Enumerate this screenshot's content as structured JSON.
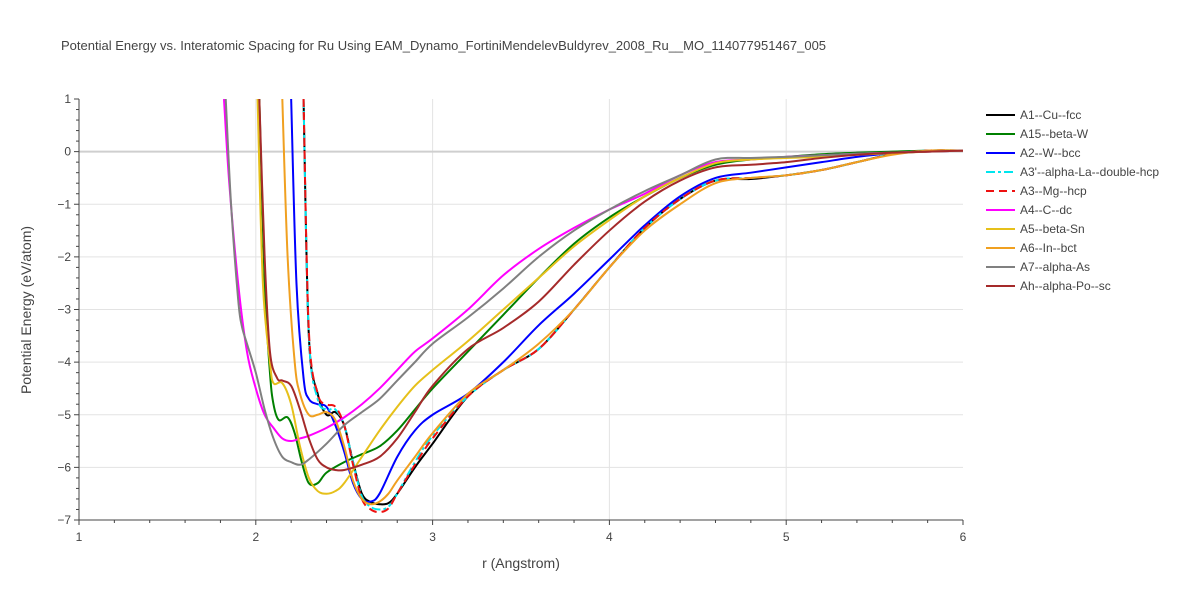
{
  "chart_data": {
    "type": "line",
    "title": "Potential Energy vs. Interatomic Spacing for Ru Using EAM_Dynamo_FortiniMendelevBuldyrev_2008_Ru__MO_114077951467_005",
    "xlabel": "r (Angstrom)",
    "ylabel": "Potential Energy (eV/atom)",
    "xlim": [
      1,
      6
    ],
    "ylim": [
      -7,
      1
    ],
    "xticks": [
      "1",
      "2",
      "3",
      "4",
      "5",
      "6"
    ],
    "yticks": [
      "1",
      "0",
      "−1",
      "−2",
      "−3",
      "−4",
      "−5",
      "−6",
      "−7"
    ],
    "grid": true,
    "legend_position": "right",
    "series": [
      {
        "name": "A1--Cu--fcc",
        "color": "#000000",
        "dash": "solid",
        "x": [
          2.27,
          2.3,
          2.35,
          2.4,
          2.45,
          2.5,
          2.55,
          2.6,
          2.65,
          2.7,
          2.75,
          2.8,
          2.9,
          3.0,
          3.2,
          3.4,
          3.6,
          3.8,
          4.0,
          4.2,
          4.4,
          4.6,
          4.8,
          5.0,
          5.2,
          5.4,
          5.6,
          5.8,
          6.0
        ],
        "y": [
          1.0,
          -3.5,
          -4.6,
          -5.0,
          -4.95,
          -5.2,
          -5.9,
          -6.5,
          -6.66,
          -6.7,
          -6.68,
          -6.5,
          -6.0,
          -5.55,
          -4.65,
          -4.15,
          -3.75,
          -3.0,
          -2.2,
          -1.45,
          -0.9,
          -0.55,
          -0.52,
          -0.45,
          -0.35,
          -0.2,
          -0.05,
          0.02,
          0.02
        ]
      },
      {
        "name": "A15--beta-W",
        "color": "#008000",
        "dash": "solid",
        "x": [
          2.02,
          2.05,
          2.08,
          2.1,
          2.13,
          2.18,
          2.22,
          2.26,
          2.3,
          2.35,
          2.4,
          2.5,
          2.6,
          2.7,
          2.8,
          2.9,
          3.0,
          3.2,
          3.4,
          3.6,
          3.8,
          4.0,
          4.2,
          4.4,
          4.6,
          4.8,
          5.0,
          5.2,
          5.4,
          5.6,
          5.8,
          6.0
        ],
        "y": [
          1.0,
          -2.5,
          -4.2,
          -4.8,
          -5.1,
          -5.05,
          -5.35,
          -5.9,
          -6.3,
          -6.3,
          -6.1,
          -5.9,
          -5.75,
          -5.6,
          -5.3,
          -4.9,
          -4.5,
          -3.8,
          -3.1,
          -2.4,
          -1.75,
          -1.25,
          -0.85,
          -0.5,
          -0.25,
          -0.15,
          -0.1,
          -0.05,
          -0.02,
          0.0,
          0.02,
          0.02
        ]
      },
      {
        "name": "A2--W--bcc",
        "color": "#0000ff",
        "dash": "solid",
        "x": [
          2.2,
          2.23,
          2.27,
          2.3,
          2.35,
          2.4,
          2.45,
          2.5,
          2.55,
          2.6,
          2.65,
          2.7,
          2.8,
          2.9,
          3.0,
          3.2,
          3.4,
          3.6,
          3.8,
          4.0,
          4.2,
          4.4,
          4.6,
          4.8,
          5.0,
          5.2,
          5.4,
          5.6,
          5.8,
          6.0
        ],
        "y": [
          1.0,
          -2.5,
          -4.3,
          -4.7,
          -4.8,
          -4.85,
          -5.2,
          -5.7,
          -6.3,
          -6.6,
          -6.65,
          -6.5,
          -5.8,
          -5.3,
          -5.0,
          -4.6,
          -4.0,
          -3.3,
          -2.7,
          -2.05,
          -1.4,
          -0.85,
          -0.5,
          -0.4,
          -0.3,
          -0.2,
          -0.1,
          -0.03,
          0.0,
          0.02
        ]
      },
      {
        "name": "A3'--alpha-La--double-hcp",
        "color": "#00e5ee",
        "dash": "dashdot",
        "x": [
          2.27,
          2.3,
          2.35,
          2.4,
          2.45,
          2.5,
          2.55,
          2.6,
          2.65,
          2.7,
          2.75,
          2.8,
          2.9,
          3.0,
          3.2,
          3.4,
          3.6,
          3.8,
          4.0,
          4.2,
          4.4,
          4.6,
          4.8,
          5.0,
          5.2,
          5.4,
          5.6,
          5.8,
          6.0
        ],
        "y": [
          1.0,
          -3.5,
          -4.7,
          -4.9,
          -4.9,
          -5.2,
          -5.9,
          -6.55,
          -6.75,
          -6.8,
          -6.75,
          -6.5,
          -5.9,
          -5.4,
          -4.65,
          -4.15,
          -3.75,
          -3.0,
          -2.2,
          -1.45,
          -0.9,
          -0.55,
          -0.5,
          -0.45,
          -0.35,
          -0.2,
          -0.05,
          0.02,
          0.02
        ]
      },
      {
        "name": "A3--Mg--hcp",
        "color": "#ee1111",
        "dash": "dash",
        "x": [
          2.27,
          2.3,
          2.35,
          2.4,
          2.45,
          2.5,
          2.55,
          2.6,
          2.65,
          2.7,
          2.75,
          2.8,
          2.9,
          3.0,
          3.2,
          3.4,
          3.6,
          3.8,
          4.0,
          4.2,
          4.4,
          4.6,
          4.8,
          5.0,
          5.2,
          5.4,
          5.6,
          5.8,
          6.0
        ],
        "y": [
          1.0,
          -3.4,
          -4.6,
          -4.8,
          -4.85,
          -5.2,
          -5.95,
          -6.6,
          -6.8,
          -6.85,
          -6.78,
          -6.5,
          -5.95,
          -5.45,
          -4.65,
          -4.15,
          -3.75,
          -3.0,
          -2.2,
          -1.45,
          -0.9,
          -0.55,
          -0.5,
          -0.45,
          -0.35,
          -0.2,
          -0.05,
          0.02,
          0.02
        ]
      },
      {
        "name": "A4--C--dc",
        "color": "#ff00ff",
        "dash": "solid",
        "x": [
          1.82,
          1.85,
          1.9,
          1.95,
          2.0,
          2.05,
          2.1,
          2.15,
          2.2,
          2.25,
          2.3,
          2.4,
          2.5,
          2.6,
          2.7,
          2.8,
          2.9,
          3.0,
          3.2,
          3.4,
          3.6,
          3.8,
          4.0,
          4.2,
          4.4,
          4.6,
          4.8,
          5.0,
          5.2,
          5.4,
          5.6,
          5.8,
          6.0
        ],
        "y": [
          1.0,
          -0.6,
          -2.5,
          -3.8,
          -4.5,
          -5.0,
          -5.25,
          -5.45,
          -5.5,
          -5.45,
          -5.4,
          -5.25,
          -5.05,
          -4.8,
          -4.5,
          -4.15,
          -3.8,
          -3.55,
          -3.0,
          -2.35,
          -1.85,
          -1.45,
          -1.1,
          -0.8,
          -0.45,
          -0.2,
          -0.15,
          -0.1,
          -0.07,
          -0.04,
          -0.02,
          0.0,
          0.02
        ]
      },
      {
        "name": "A5--beta-Sn",
        "color": "#e6c01a",
        "dash": "solid",
        "x": [
          2.01,
          2.04,
          2.08,
          2.1,
          2.15,
          2.2,
          2.25,
          2.3,
          2.35,
          2.4,
          2.45,
          2.5,
          2.6,
          2.7,
          2.8,
          2.9,
          3.0,
          3.2,
          3.4,
          3.6,
          3.8,
          4.0,
          4.2,
          4.4,
          4.6,
          4.8,
          5.0,
          5.2,
          5.4,
          5.6,
          5.8,
          6.0
        ],
        "y": [
          1.0,
          -2.5,
          -4.0,
          -4.4,
          -4.4,
          -4.8,
          -5.6,
          -6.2,
          -6.45,
          -6.5,
          -6.45,
          -6.3,
          -5.8,
          -5.3,
          -4.85,
          -4.45,
          -4.15,
          -3.6,
          -3.0,
          -2.4,
          -1.8,
          -1.3,
          -0.85,
          -0.5,
          -0.22,
          -0.15,
          -0.12,
          -0.1,
          -0.06,
          -0.03,
          0.0,
          0.02
        ]
      },
      {
        "name": "A6--In--bct",
        "color": "#f0a020",
        "dash": "solid",
        "x": [
          2.15,
          2.18,
          2.22,
          2.25,
          2.3,
          2.35,
          2.4,
          2.45,
          2.5,
          2.55,
          2.6,
          2.65,
          2.7,
          2.75,
          2.8,
          2.9,
          3.0,
          3.2,
          3.4,
          3.6,
          3.8,
          4.0,
          4.2,
          4.4,
          4.6,
          4.8,
          5.0,
          5.2,
          5.4,
          5.6,
          5.8,
          6.0
        ],
        "y": [
          1.0,
          -2.0,
          -4.0,
          -4.6,
          -5.0,
          -5.0,
          -4.95,
          -5.1,
          -5.6,
          -6.25,
          -6.6,
          -6.7,
          -6.65,
          -6.5,
          -6.25,
          -5.8,
          -5.35,
          -4.6,
          -4.15,
          -3.65,
          -3.0,
          -2.2,
          -1.5,
          -1.0,
          -0.6,
          -0.5,
          -0.45,
          -0.35,
          -0.2,
          -0.06,
          0.02,
          0.02
        ]
      },
      {
        "name": "A7--alpha-As",
        "color": "#808080",
        "dash": "solid",
        "x": [
          1.83,
          1.86,
          1.9,
          1.92,
          1.95,
          2.0,
          2.05,
          2.1,
          2.15,
          2.2,
          2.25,
          2.3,
          2.4,
          2.5,
          2.6,
          2.7,
          2.8,
          2.9,
          3.0,
          3.2,
          3.4,
          3.6,
          3.8,
          4.0,
          4.2,
          4.4,
          4.6,
          4.8,
          5.0,
          5.2,
          5.4,
          5.6,
          5.8,
          6.0
        ],
        "y": [
          1.0,
          -1.0,
          -2.8,
          -3.3,
          -3.65,
          -4.2,
          -4.9,
          -5.45,
          -5.8,
          -5.9,
          -5.95,
          -5.85,
          -5.55,
          -5.2,
          -4.95,
          -4.7,
          -4.35,
          -4.0,
          -3.65,
          -3.15,
          -2.6,
          -2.0,
          -1.5,
          -1.1,
          -0.75,
          -0.45,
          -0.15,
          -0.12,
          -0.1,
          -0.07,
          -0.04,
          -0.02,
          0.0,
          0.02
        ]
      },
      {
        "name": "Ah--alpha-Po--sc",
        "color": "#a52a2a",
        "dash": "solid",
        "x": [
          2.02,
          2.05,
          2.08,
          2.12,
          2.15,
          2.2,
          2.25,
          2.3,
          2.35,
          2.4,
          2.45,
          2.5,
          2.6,
          2.7,
          2.8,
          2.9,
          3.0,
          3.2,
          3.4,
          3.6,
          3.8,
          4.0,
          4.2,
          4.4,
          4.6,
          4.8,
          5.0,
          5.2,
          5.4,
          5.6,
          5.8,
          6.0
        ],
        "y": [
          1.0,
          -2.0,
          -3.8,
          -4.3,
          -4.35,
          -4.45,
          -4.9,
          -5.45,
          -5.85,
          -6.0,
          -6.05,
          -6.05,
          -5.95,
          -5.8,
          -5.45,
          -4.95,
          -4.45,
          -3.75,
          -3.35,
          -2.85,
          -2.15,
          -1.5,
          -0.95,
          -0.55,
          -0.3,
          -0.25,
          -0.2,
          -0.12,
          -0.06,
          -0.02,
          0.0,
          0.02
        ]
      }
    ]
  }
}
